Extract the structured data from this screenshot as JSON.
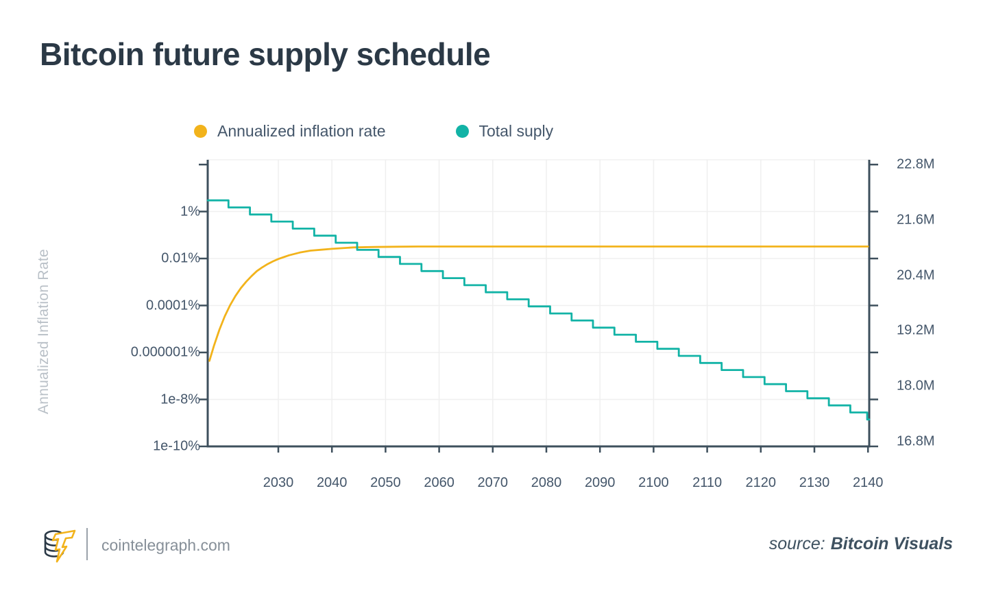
{
  "title": "Bitcoin future supply schedule",
  "legend": [
    {
      "label": "Annualized inflation rate",
      "color": "#F2B31B"
    },
    {
      "label": "Total suply",
      "color": "#12B3A6"
    }
  ],
  "chart_data": {
    "type": "line",
    "title": "Bitcoin future supply schedule",
    "x_axis": {
      "ticks": [
        2030,
        2040,
        2050,
        2060,
        2070,
        2080,
        2090,
        2100,
        2110,
        2120,
        2130,
        2140
      ],
      "range": [
        2016.85,
        2140
      ]
    },
    "y_left": {
      "title": "Annualized Inflation Rate",
      "scale": "log",
      "tick_labels": [
        "1%",
        "0.01%",
        "0.0001%",
        "0.000001%",
        "1e-8%",
        "1e-10%"
      ],
      "tick_values": [
        1,
        0.01,
        0.0001,
        1e-06,
        1e-08,
        1e-10
      ],
      "range": [
        1e-10,
        100
      ]
    },
    "y_right": {
      "tick_labels": [
        "22.8M",
        "21.6M",
        "20.4M",
        "19.2M",
        "18.0M",
        "16.8M"
      ],
      "tick_values": [
        22.8,
        21.6,
        20.4,
        19.2,
        18.0,
        16.8
      ],
      "range": [
        16.7,
        22.8
      ]
    },
    "grid": true,
    "legend_position": "top",
    "series": [
      {
        "name": "Annualized inflation rate",
        "color": "#F2B31B",
        "axis": "right",
        "type": "smooth",
        "points": [
          [
            2017.15,
            18.56
          ],
          [
            2018,
            18.89
          ],
          [
            2019,
            19.23
          ],
          [
            2020,
            19.52
          ],
          [
            2021,
            19.76
          ],
          [
            2022,
            19.96
          ],
          [
            2023,
            20.13
          ],
          [
            2024,
            20.27
          ],
          [
            2025,
            20.39
          ],
          [
            2026,
            20.5
          ],
          [
            2027,
            20.58
          ],
          [
            2028,
            20.65
          ],
          [
            2029,
            20.71
          ],
          [
            2030,
            20.76
          ],
          [
            2031,
            20.8
          ],
          [
            2032,
            20.84
          ],
          [
            2034,
            20.9
          ],
          [
            2036,
            20.94
          ],
          [
            2038,
            20.96
          ],
          [
            2040,
            20.98
          ],
          [
            2044,
            21.01
          ],
          [
            2048,
            21.02
          ],
          [
            2052,
            21.025
          ],
          [
            2056,
            21.03
          ],
          [
            2060,
            21.03
          ],
          [
            2070,
            21.03
          ],
          [
            2080,
            21.03
          ],
          [
            2090,
            21.03
          ],
          [
            2100,
            21.03
          ],
          [
            2110,
            21.03
          ],
          [
            2120,
            21.03
          ],
          [
            2130,
            21.03
          ],
          [
            2140,
            21.03
          ]
        ]
      },
      {
        "name": "Total suply",
        "color": "#12B3A6",
        "axis": "left",
        "type": "step",
        "points": [
          [
            2016.85,
            3.0
          ],
          [
            2020.7,
            1.5
          ],
          [
            2024.7,
            0.75
          ],
          [
            2028.7,
            0.375
          ],
          [
            2032.7,
            0.1875
          ],
          [
            2036.7,
            0.09375
          ],
          [
            2040.7,
            0.046875
          ],
          [
            2044.7,
            0.0234
          ],
          [
            2048.7,
            0.0117
          ],
          [
            2052.7,
            0.00586
          ],
          [
            2056.7,
            0.00293
          ],
          [
            2060.7,
            0.00146
          ],
          [
            2064.7,
            0.000732
          ],
          [
            2068.7,
            0.000366
          ],
          [
            2072.7,
            0.000183
          ],
          [
            2076.7,
            9.16e-05
          ],
          [
            2080.7,
            4.58e-05
          ],
          [
            2084.7,
            2.29e-05
          ],
          [
            2088.7,
            1.14e-05
          ],
          [
            2092.7,
            5.72e-06
          ],
          [
            2096.7,
            2.86e-06
          ],
          [
            2100.7,
            1.43e-06
          ],
          [
            2104.7,
            7.15e-07
          ],
          [
            2108.7,
            3.58e-07
          ],
          [
            2112.7,
            1.79e-07
          ],
          [
            2116.7,
            8.94e-08
          ],
          [
            2120.7,
            4.47e-08
          ],
          [
            2124.7,
            2.24e-08
          ],
          [
            2128.7,
            1.12e-08
          ],
          [
            2132.7,
            5.59e-09
          ],
          [
            2136.7,
            2.79e-09
          ],
          [
            2139.85,
            1.4e-09
          ]
        ]
      }
    ]
  },
  "footer": {
    "site": "cointelegraph.com",
    "source_prefix": "source:",
    "source_name": "Bitcoin Visuals"
  }
}
